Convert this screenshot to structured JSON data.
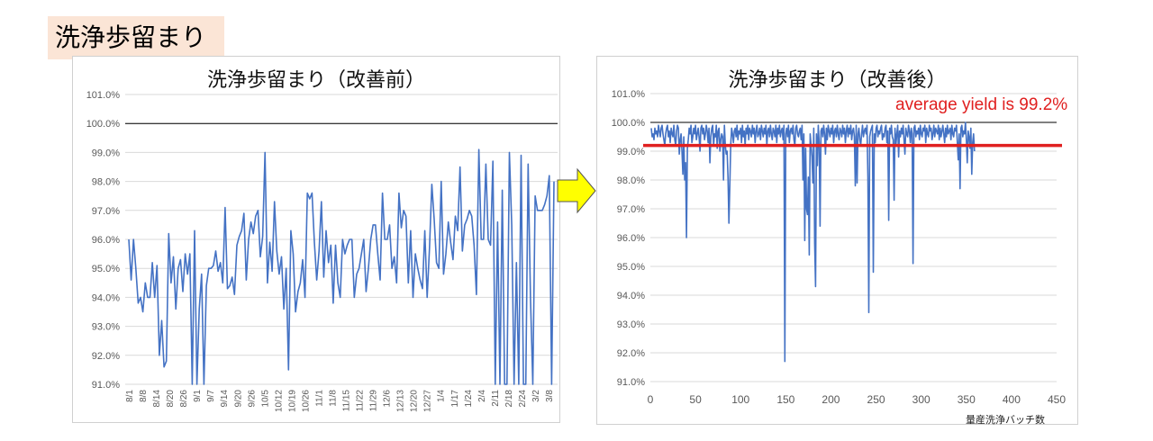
{
  "section_title": "洗浄歩留まり",
  "chart_data": [
    {
      "type": "line",
      "title": "洗浄歩留まり（改善前）",
      "xlabel": "",
      "ylabel": "",
      "ylim": [
        91.0,
        101.0
      ],
      "yticks": [
        "101.0%",
        "100.0%",
        "99.0%",
        "98.0%",
        "97.0%",
        "96.0%",
        "95.0%",
        "94.0%",
        "93.0%",
        "92.0%",
        "91.0%"
      ],
      "xticks": [
        "8/1",
        "8/8",
        "8/14",
        "8/20",
        "8/26",
        "9/1",
        "9/7",
        "9/14",
        "9/20",
        "9/26",
        "10/5",
        "10/12",
        "10/19",
        "10/26",
        "11/1",
        "11/8",
        "11/15",
        "11/22",
        "11/29",
        "12/6",
        "12/13",
        "12/20",
        "12/27",
        "1/4",
        "1/17",
        "1/24",
        "2/4",
        "2/11",
        "2/18",
        "2/24",
        "3/2",
        "3/8"
      ],
      "target_line": 100.0,
      "series": [
        {
          "color": "#4472c4",
          "values": [
            96.0,
            94.6,
            96.0,
            95.0,
            93.8,
            94.0,
            93.5,
            94.5,
            94.0,
            94.0,
            95.2,
            94.0,
            95.1,
            92.0,
            93.2,
            91.6,
            91.8,
            96.2,
            94.5,
            95.4,
            93.6,
            95.0,
            95.3,
            94.2,
            95.5,
            94.8,
            95.5,
            91.0,
            96.3,
            91.0,
            93.6,
            94.8,
            91.0,
            94.4,
            95.0,
            95.0,
            95.1,
            95.6,
            94.9,
            95.2,
            94.5,
            97.1,
            94.3,
            94.4,
            94.7,
            94.1,
            95.8,
            96.1,
            96.3,
            96.9,
            94.6,
            96.0,
            96.6,
            96.2,
            96.8,
            97.0,
            95.4,
            96.1,
            99.0,
            94.5,
            95.9,
            94.9,
            97.3,
            95.6,
            94.8,
            95.4,
            93.6,
            95.0,
            91.5,
            96.3,
            95.5,
            93.5,
            94.2,
            94.5,
            95.3,
            94.0,
            97.6,
            97.4,
            97.6,
            95.9,
            94.6,
            95.6,
            97.3,
            94.7,
            96.3,
            95.2,
            95.8,
            93.8,
            95.8,
            94.5,
            94.0,
            96.0,
            95.5,
            95.8,
            96.0,
            96.0,
            94.0,
            94.8,
            95.0,
            95.5,
            96.0,
            94.2,
            95.0,
            96.0,
            96.5,
            96.5,
            95.5,
            94.6,
            97.6,
            96.0,
            96.0,
            96.5,
            95.0,
            95.4,
            94.5,
            97.6,
            96.4,
            97.0,
            96.8,
            94.5,
            96.3,
            94.0,
            95.5,
            95.0,
            94.6,
            94.3,
            96.3,
            94.0,
            95.7,
            97.9,
            96.7,
            95.2,
            95.0,
            98.0,
            94.8,
            95.5,
            96.6,
            95.9,
            95.3,
            96.8,
            96.3,
            98.5,
            95.6,
            96.5,
            96.7,
            97.0,
            96.8,
            95.8,
            94.1,
            99.1,
            96.0,
            96.0,
            98.6,
            96.0,
            95.8,
            98.7,
            91.0,
            96.6,
            91.0,
            97.7,
            91.0,
            91.0,
            99.0,
            96.5,
            91.0,
            95.2,
            91.0,
            98.9,
            91.0,
            91.0,
            98.6,
            94.0,
            91.0,
            97.5,
            97.0,
            97.0,
            97.0,
            97.2,
            97.5,
            98.2,
            91.0,
            98.0
          ]
        }
      ]
    },
    {
      "type": "line",
      "title": "洗浄歩留まり（改善後）",
      "xlabel": "量産洗浄バッチ数",
      "ylabel": "",
      "ylim": [
        91.0,
        101.0
      ],
      "xlim": [
        0,
        450
      ],
      "yticks": [
        "101.0%",
        "100.0%",
        "99.0%",
        "98.0%",
        "97.0%",
        "96.0%",
        "95.0%",
        "94.0%",
        "93.0%",
        "92.0%",
        "91.0%"
      ],
      "xticks": [
        "0",
        "50",
        "100",
        "150",
        "200",
        "250",
        "300",
        "350",
        "400",
        "450"
      ],
      "target_line": 100.0,
      "average_line": 99.2,
      "annotation": "average yield is 99.2%",
      "series": [
        {
          "color": "#4472c4",
          "values": [
            99.8,
            99.5,
            99.6,
            99.4,
            99.8,
            99.6,
            99.7,
            99.5,
            99.9,
            99.7,
            99.5,
            99.8,
            99.9,
            99.6,
            99.4,
            99.2,
            99.6,
            99.8,
            99.9,
            99.5,
            99.7,
            99.3,
            99.8,
            99.6,
            99.5,
            99.9,
            99.4,
            99.2,
            99.7,
            99.9,
            99.8,
            98.9,
            99.4,
            99.6,
            99.0,
            98.2,
            99.5,
            98.0,
            98.6,
            96.0,
            99.1,
            99.4,
            99.8,
            99.6,
            99.9,
            99.3,
            99.5,
            99.8,
            99.6,
            99.9,
            99.4,
            99.6,
            99.8,
            99.5,
            99.0,
            99.8,
            99.9,
            99.6,
            99.8,
            99.4,
            99.6,
            99.9,
            99.7,
            99.3,
            99.8,
            98.6,
            99.5,
            99.8,
            99.9,
            99.2,
            99.6,
            99.5,
            99.9,
            99.1,
            99.7,
            99.8,
            99.0,
            99.4,
            99.6,
            99.5,
            98.0,
            99.9,
            99.2,
            98.9,
            99.0,
            98.1,
            96.5,
            97.8,
            99.2,
            99.8,
            99.6,
            99.3,
            99.7,
            99.8,
            99.5,
            99.9,
            99.4,
            99.7,
            99.6,
            99.8,
            99.3,
            99.9,
            99.5,
            99.7,
            99.2,
            99.8,
            99.6,
            99.9,
            99.4,
            99.8,
            99.7,
            99.5,
            99.9,
            99.6,
            99.8,
            99.3,
            99.7,
            99.9,
            99.5,
            99.6,
            99.8,
            99.4,
            99.9,
            99.7,
            99.5,
            99.8,
            99.6,
            99.9,
            99.2,
            99.7,
            99.8,
            99.5,
            99.9,
            99.6,
            99.4,
            99.8,
            99.7,
            99.5,
            99.9,
            99.3,
            99.8,
            99.6,
            99.9,
            99.5,
            99.7,
            99.8,
            99.4,
            99.9,
            91.7,
            99.6,
            99.8,
            99.5,
            99.9,
            99.3,
            99.7,
            99.8,
            99.6,
            99.9,
            99.4,
            99.2,
            99.8,
            99.9,
            99.6,
            99.5,
            99.7,
            99.8,
            99.4,
            99.9,
            98.0,
            99.6,
            95.9,
            99.1,
            97.0,
            96.8,
            98.1,
            95.4,
            99.6,
            99.2,
            98.8,
            97.9,
            99.8,
            95.8,
            94.3,
            99.6,
            98.5,
            99.9,
            99.3,
            96.4,
            99.7,
            99.8,
            99.5,
            99.9,
            99.6,
            98.9,
            99.8,
            99.4,
            99.9,
            99.7,
            99.5,
            99.8,
            99.6,
            99.9,
            99.3,
            99.7,
            99.8,
            99.5,
            99.9,
            99.6,
            99.4,
            99.8,
            99.7,
            99.5,
            99.9,
            99.6,
            99.8,
            99.3,
            99.7,
            99.9,
            99.5,
            99.8,
            99.6,
            99.9,
            99.4,
            99.7,
            99.8,
            99.5,
            97.8,
            99.9,
            97.9,
            99.6,
            99.8,
            99.4,
            99.2,
            99.6,
            99.9,
            99.5,
            99.7,
            99.8,
            99.6,
            99.9,
            98.1,
            93.4,
            99.5,
            99.7,
            99.8,
            99.9,
            94.8,
            99.6,
            99.3,
            99.8,
            99.9,
            99.5,
            99.7,
            99.6,
            99.8,
            99.9,
            99.4,
            99.6,
            99.5,
            99.8,
            99.9,
            99.3,
            99.7,
            96.6,
            99.8,
            99.6,
            99.9,
            99.5,
            99.4,
            97.3,
            99.8,
            99.2,
            99.6,
            99.9,
            98.8,
            99.7,
            99.5,
            99.8,
            99.6,
            99.9,
            99.4,
            98.9,
            99.8,
            99.6,
            99.5,
            99.9,
            99.7,
            99.3,
            99.8,
            99.6,
            95.1,
            99.8,
            99.9,
            99.5,
            99.7,
            99.6,
            99.8,
            99.4,
            99.9,
            99.6,
            99.5,
            99.8,
            99.7,
            99.9,
            99.3,
            99.8,
            99.6,
            99.5,
            99.9,
            99.7,
            99.8,
            99.4,
            99.6,
            99.9,
            99.5,
            99.8,
            99.7,
            99.6,
            99.9,
            99.4,
            99.8,
            99.5,
            99.7,
            99.9,
            99.6,
            99.3,
            99.8,
            99.5,
            99.9,
            99.6,
            99.7,
            99.8,
            99.4,
            99.9,
            99.6,
            99.5,
            99.8,
            99.7,
            99.9,
            99.3,
            98.7,
            99.6,
            97.7,
            99.8,
            99.9,
            99.5,
            99.7,
            99.6,
            100.0,
            99.4,
            98.6,
            99.7,
            99.5,
            99.1,
            99.8,
            98.2,
            99.3,
            99.6,
            99.0
          ]
        }
      ]
    }
  ]
}
